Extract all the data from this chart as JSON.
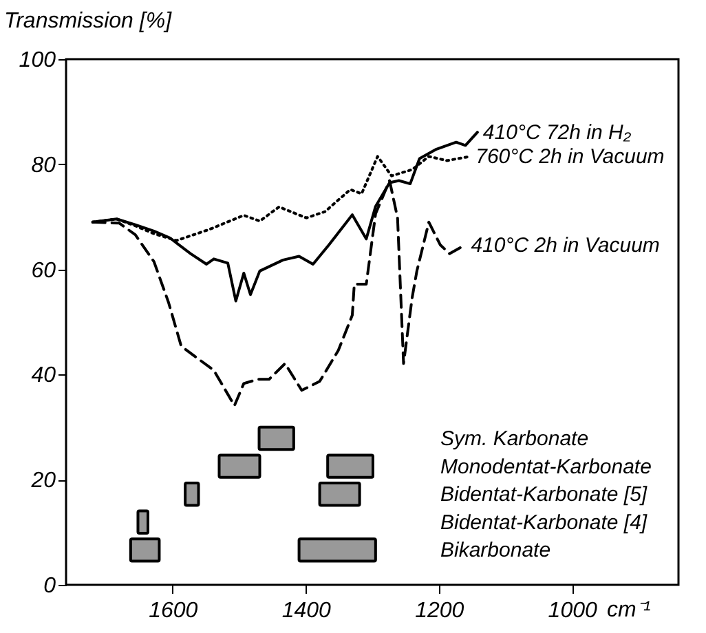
{
  "chart_data": [
    {
      "type": "line",
      "ylabel": "Transmission [%]",
      "xlabel": "cm⁻¹",
      "xlim": [
        1760,
        840
      ],
      "xticks": [
        1600,
        1400,
        1200,
        1000
      ],
      "ylim": [
        0,
        100
      ],
      "yticks": [
        0,
        20,
        40,
        60,
        80,
        100
      ],
      "grid": false,
      "series": [
        {
          "name": "410°C 72h in H₂",
          "color": "#000000",
          "line_style": "solid",
          "x": [
            1720,
            1684,
            1656,
            1628,
            1604,
            1573,
            1549,
            1538,
            1517,
            1505,
            1493,
            1483,
            1469,
            1434,
            1410,
            1389,
            1365,
            1330,
            1309,
            1295,
            1274,
            1260,
            1243,
            1229,
            1205,
            1174,
            1160,
            1142
          ],
          "values": [
            69,
            69.6,
            68.5,
            67.3,
            66,
            63,
            61,
            62,
            61.2,
            54,
            59.3,
            55.2,
            59.7,
            61.8,
            62.5,
            61,
            64.7,
            70.4,
            65.8,
            72,
            76.5,
            76.9,
            76.3,
            81.1,
            82.8,
            84.2,
            83.6,
            86.1
          ]
        },
        {
          "name": "760°C 2h in Vacuum",
          "color": "#000000",
          "line_style": "dotted",
          "x": [
            1720,
            1684,
            1656,
            1628,
            1594,
            1545,
            1493,
            1469,
            1440,
            1399,
            1371,
            1333,
            1316,
            1292,
            1271,
            1240,
            1215,
            1188,
            1153
          ],
          "values": [
            69,
            69.6,
            68.3,
            66.8,
            65.5,
            67.6,
            70.3,
            69.2,
            71.9,
            69.8,
            71,
            75.2,
            74.4,
            81.5,
            77.8,
            79,
            81.5,
            80.7,
            81.5
          ]
        },
        {
          "name": "410°C 2h in Vacuum",
          "color": "#000000",
          "line_style": "dashed",
          "x": [
            1720,
            1680,
            1656,
            1628,
            1606,
            1587,
            1538,
            1507,
            1493,
            1472,
            1455,
            1431,
            1406,
            1379,
            1351,
            1330,
            1327,
            1309,
            1295,
            1274,
            1262,
            1253,
            1240,
            1233,
            1215,
            1198,
            1184,
            1160
          ],
          "values": [
            69,
            68.8,
            66.6,
            61.5,
            53.7,
            45.4,
            40.8,
            34.1,
            38.3,
            39.1,
            39.1,
            42.1,
            37,
            38.7,
            44.6,
            51.3,
            57.2,
            57.2,
            70.6,
            76.9,
            69.8,
            42.1,
            54.7,
            59.7,
            69,
            64.7,
            63,
            64.7
          ]
        }
      ]
    },
    {
      "type": "bar",
      "orientation": "horizontal",
      "xlim": [
        1760,
        840
      ],
      "tick_labels": "y",
      "categories": [
        "Sym. Karbonate",
        "Monodentat-Karbonate",
        "Bidentat-Karbonate [5]",
        "Bidentat-Karbonate [4]",
        "Bikarbonate"
      ],
      "series": [
        {
          "color": "#999999",
          "base": [
            1470,
            1530,
            1581,
            1652,
            1663
          ],
          "values": [
            -52,
            -61,
            -20,
            -15,
            -43
          ]
        },
        {
          "color": "#999999",
          "base": [
            null,
            1367,
            1379,
            null,
            1410
          ],
          "values": [
            null,
            -68,
            -60,
            null,
            -115
          ]
        }
      ]
    }
  ]
}
